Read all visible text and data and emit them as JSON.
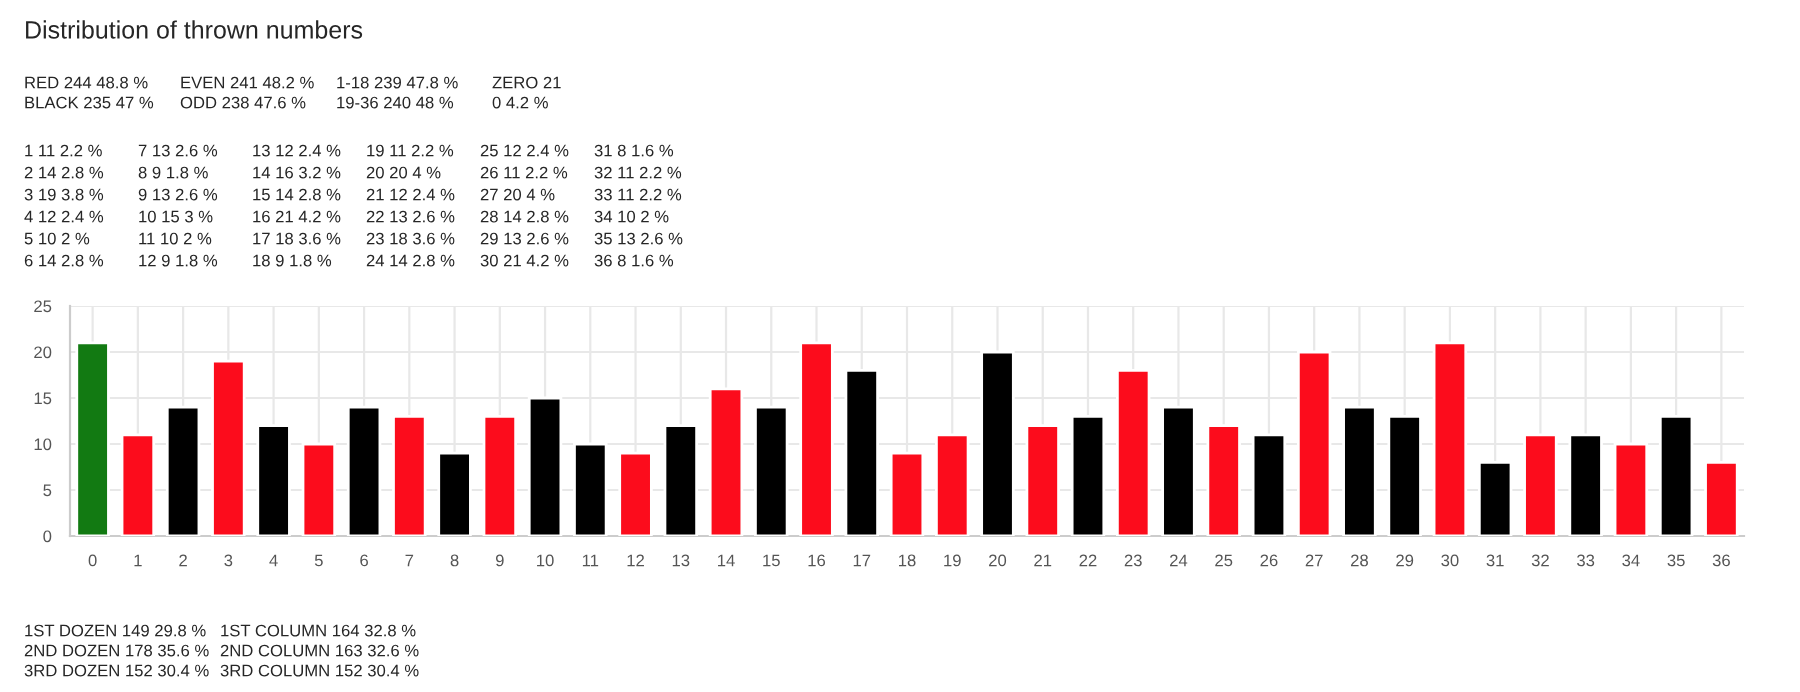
{
  "chart_data": {
    "type": "bar",
    "title": "Distribution of thrown numbers",
    "categories": [
      "0",
      "1",
      "2",
      "3",
      "4",
      "5",
      "6",
      "7",
      "8",
      "9",
      "10",
      "11",
      "12",
      "13",
      "14",
      "15",
      "16",
      "17",
      "18",
      "19",
      "20",
      "21",
      "22",
      "23",
      "24",
      "25",
      "26",
      "27",
      "28",
      "29",
      "30",
      "31",
      "32",
      "33",
      "34",
      "35",
      "36"
    ],
    "values": [
      21,
      11,
      14,
      19,
      12,
      10,
      14,
      13,
      9,
      13,
      15,
      10,
      9,
      12,
      16,
      14,
      21,
      18,
      9,
      11,
      20,
      12,
      13,
      18,
      14,
      12,
      11,
      20,
      14,
      13,
      21,
      8,
      11,
      11,
      10,
      13,
      8
    ],
    "colors": [
      "#127a12",
      "#fc0c1c",
      "#000000",
      "#fc0c1c",
      "#000000",
      "#fc0c1c",
      "#000000",
      "#fc0c1c",
      "#000000",
      "#fc0c1c",
      "#000000",
      "#000000",
      "#fc0c1c",
      "#000000",
      "#fc0c1c",
      "#000000",
      "#fc0c1c",
      "#000000",
      "#fc0c1c",
      "#fc0c1c",
      "#000000",
      "#fc0c1c",
      "#000000",
      "#fc0c1c",
      "#000000",
      "#fc0c1c",
      "#000000",
      "#fc0c1c",
      "#000000",
      "#000000",
      "#fc0c1c",
      "#000000",
      "#fc0c1c",
      "#000000",
      "#fc0c1c",
      "#000000",
      "#fc0c1c"
    ],
    "ylim": [
      0,
      25
    ],
    "yticks": [
      0,
      5,
      10,
      15,
      20,
      25
    ],
    "grid": true,
    "annotations": [
      "RED 244 48.8 %",
      "BLACK 235 47 %",
      "EVEN 241 48.2 %",
      "ODD 238 47.6 %",
      "1-18 239 47.8 %",
      "19-36 240 48 %",
      "ZERO 21",
      "0 4.2 %",
      "1 11 2.2 %",
      "2 14 2.8 %",
      "3 19 3.8 %",
      "4 12 2.4 %",
      "5 10 2 %",
      "6 14 2.8 %",
      "7 13 2.6 %",
      "8 9 1.8 %",
      "9 13 2.6 %",
      "10 15 3 %",
      "11 10 2 %",
      "12 9 1.8 %",
      "13 12 2.4 %",
      "14 16 3.2 %",
      "15 14 2.8 %",
      "16 21 4.2 %",
      "17 18 3.6 %",
      "18 9 1.8 %",
      "19 11 2.2 %",
      "20 20 4 %",
      "21 12 2.4 %",
      "22 13 2.6 %",
      "23 18 3.6 %",
      "24 14 2.8 %",
      "25 12 2.4 %",
      "26 11 2.2 %",
      "27 20 4 %",
      "28 14 2.8 %",
      "29 13 2.6 %",
      "30 21 4.2 %",
      "31 8 1.6 %",
      "32 11 2.2 %",
      "33 11 2.2 %",
      "34 10 2 %",
      "35 13 2.6 %",
      "36 8 1.6 %",
      "1ST DOZEN 149 29.8 %",
      "2ND DOZEN 178 35.6 %",
      "3RD DOZEN 152 30.4 %",
      "1ST COLUMN 164 32.8 %",
      "2ND COLUMN 163 32.6 %",
      "3RD COLUMN 152 30.4 %"
    ]
  }
}
